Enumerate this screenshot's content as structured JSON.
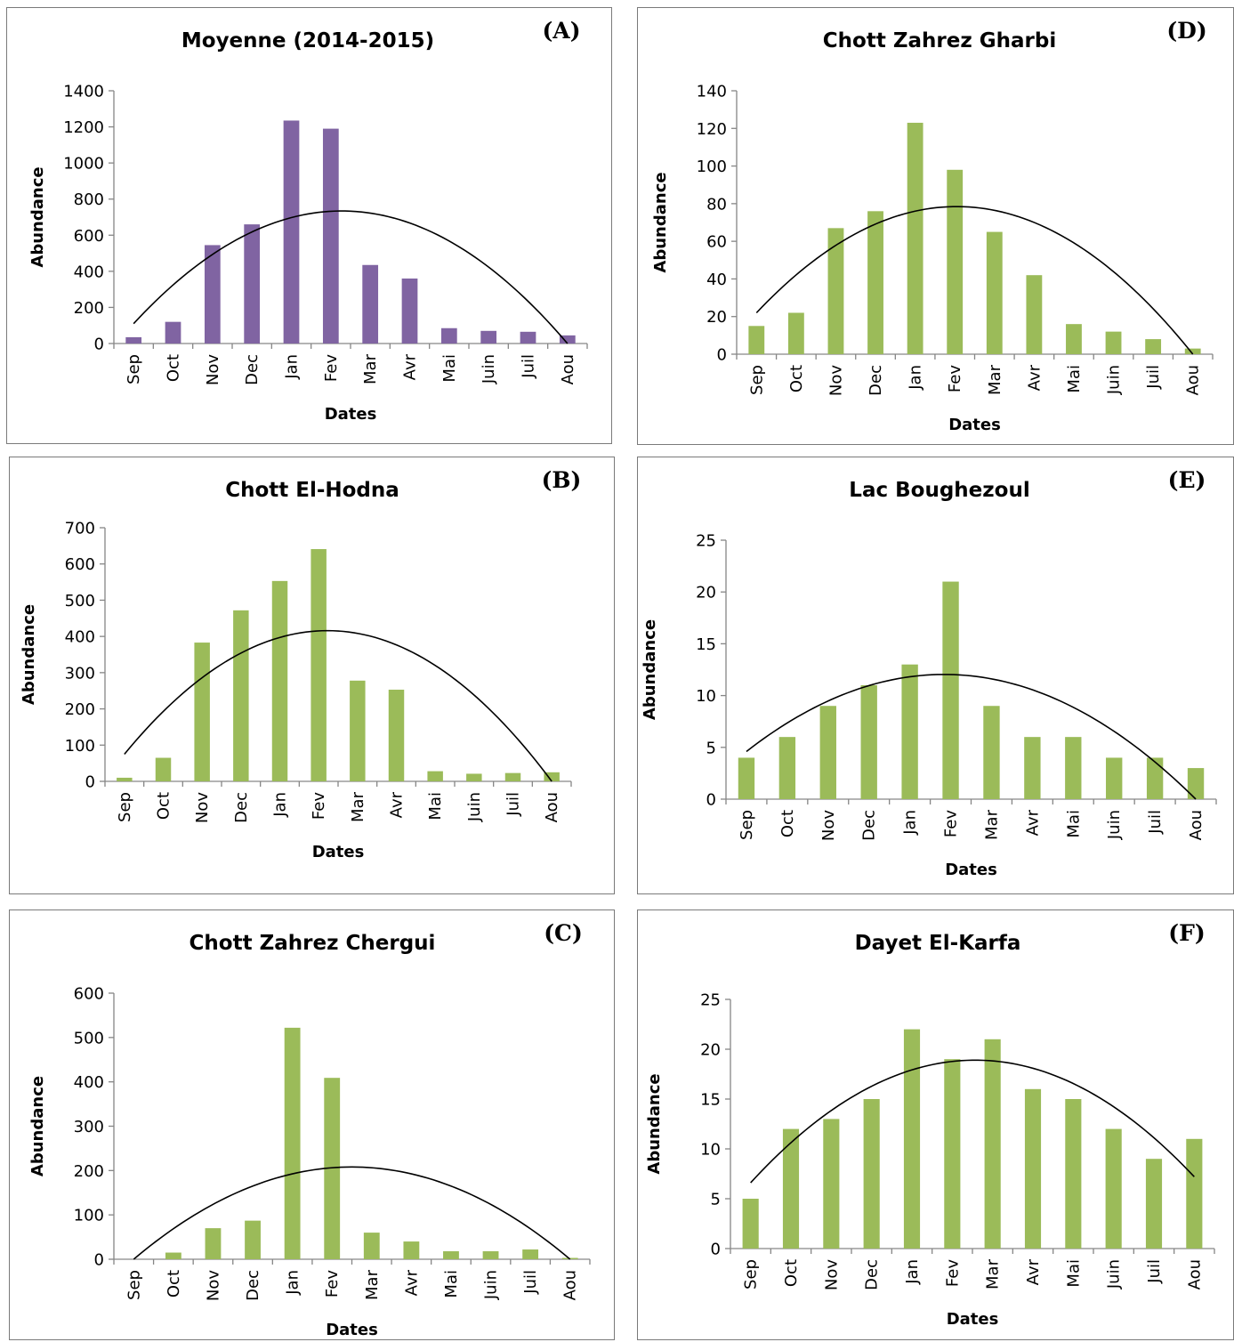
{
  "chart_data": [
    {
      "id": "A",
      "panel_label": "(A)",
      "type": "bar",
      "title": "Moyenne (2014-2015)",
      "xlabel": "Dates",
      "ylabel": "Abundance",
      "categories": [
        "Sep",
        "Oct",
        "Nov",
        "Dec",
        "Jan",
        "Fev",
        "Mar",
        "Avr",
        "Mai",
        "Juin",
        "Juil",
        "Aou"
      ],
      "values": [
        35,
        120,
        545,
        660,
        1235,
        1190,
        435,
        360,
        85,
        70,
        65,
        45
      ],
      "ylim": [
        0,
        1400
      ],
      "yticks": [
        0,
        200,
        400,
        600,
        800,
        1000,
        1200,
        1400
      ],
      "trend": [
        110,
        733,
        0
      ],
      "bar_color": "#8064a2"
    },
    {
      "id": "D",
      "panel_label": "(D)",
      "type": "bar",
      "title": "Chott Zahrez Gharbi",
      "xlabel": "Dates",
      "ylabel": "Abundance",
      "categories": [
        "Sep",
        "Oct",
        "Nov",
        "Dec",
        "Jan",
        "Fev",
        "Mar",
        "Avr",
        "Mai",
        "Juin",
        "Juil",
        "Aou"
      ],
      "values": [
        15,
        22,
        67,
        76,
        123,
        98,
        65,
        42,
        16,
        12,
        8,
        3
      ],
      "ylim": [
        0,
        140
      ],
      "yticks": [
        0,
        20,
        40,
        60,
        80,
        100,
        120,
        140
      ],
      "trend": [
        22,
        78,
        0
      ],
      "bar_color": "#9bbb59"
    },
    {
      "id": "B",
      "panel_label": "(B)",
      "type": "bar",
      "title": "Chott El-Hodna",
      "xlabel": "Dates",
      "ylabel": "Abundance",
      "categories": [
        "Sep",
        "Oct",
        "Nov",
        "Dec",
        "Jan",
        "Fev",
        "Mar",
        "Avr",
        "Mai",
        "Juin",
        "Juil",
        "Aou"
      ],
      "values": [
        10,
        65,
        383,
        472,
        553,
        641,
        278,
        253,
        28,
        21,
        23,
        25
      ],
      "ylim": [
        0,
        700
      ],
      "yticks": [
        0,
        100,
        200,
        300,
        400,
        500,
        600,
        700
      ],
      "trend": [
        75,
        415,
        0
      ],
      "bar_color": "#9bbb59"
    },
    {
      "id": "E",
      "panel_label": "(E)",
      "type": "bar",
      "title": "Lac Boughezoul",
      "xlabel": "Dates",
      "ylabel": "Abundance",
      "categories": [
        "Sep",
        "Oct",
        "Nov",
        "Dec",
        "Jan",
        "Fev",
        "Mar",
        "Avr",
        "Mai",
        "Juin",
        "Juil",
        "Aou"
      ],
      "values": [
        4,
        6,
        9,
        11,
        13,
        21,
        9,
        6,
        6,
        4,
        4,
        3
      ],
      "ylim": [
        0,
        25
      ],
      "yticks": [
        0,
        5,
        10,
        15,
        20,
        25
      ],
      "trend": [
        4.6,
        11.9,
        0
      ],
      "bar_color": "#9bbb59"
    },
    {
      "id": "C",
      "panel_label": "(C)",
      "type": "bar",
      "title": "Chott Zahrez Chergui",
      "xlabel": "Dates",
      "ylabel": "Abundance",
      "categories": [
        "Sep",
        "Oct",
        "Nov",
        "Dec",
        "Jan",
        "Fev",
        "Mar",
        "Avr",
        "Mai",
        "Juin",
        "Juil",
        "Aou"
      ],
      "values": [
        0,
        15,
        70,
        87,
        522,
        409,
        60,
        40,
        18,
        18,
        22,
        3
      ],
      "ylim": [
        0,
        600
      ],
      "yticks": [
        0,
        100,
        200,
        300,
        400,
        500,
        600
      ],
      "trend": [
        0,
        208,
        0
      ],
      "bar_color": "#9bbb59"
    },
    {
      "id": "F",
      "panel_label": "(F)",
      "type": "bar",
      "title": "Dayet El-Karfa",
      "xlabel": "Dates",
      "ylabel": "Abundance",
      "categories": [
        "Sep",
        "Oct",
        "Nov",
        "Dec",
        "Jan",
        "Fev",
        "Mar",
        "Avr",
        "Mai",
        "Juin",
        "Juil",
        "Aou"
      ],
      "values": [
        5,
        12,
        13,
        15,
        22,
        19,
        21,
        16,
        15,
        12,
        9,
        11
      ],
      "ylim": [
        0,
        25
      ],
      "yticks": [
        0,
        5,
        10,
        15,
        20,
        25
      ],
      "trend": [
        6.6,
        18.9,
        7.2
      ],
      "bar_color": "#9bbb59"
    }
  ]
}
